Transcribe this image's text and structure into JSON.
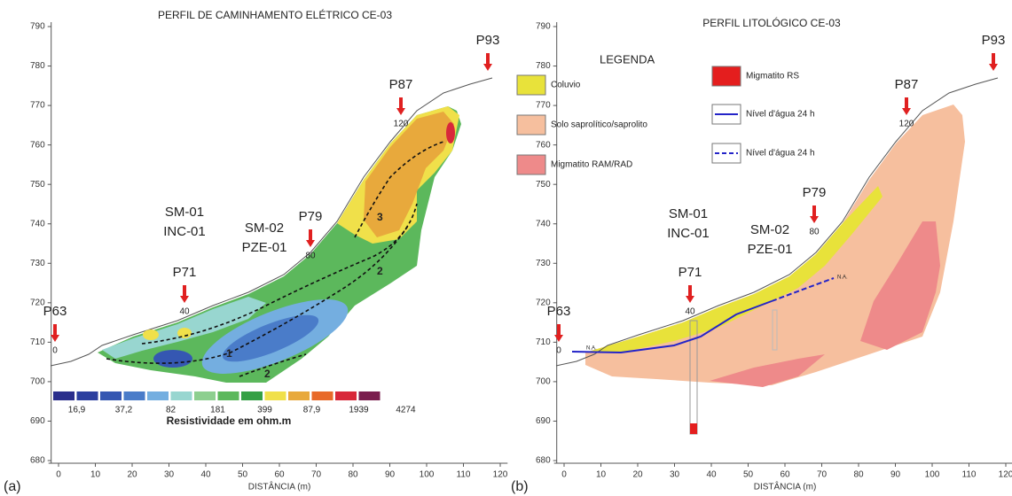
{
  "chart_data": [
    {
      "type": "profile",
      "title": "PERFIL DE CAMINHAMENTO ELÉTRICO CE-03",
      "panel_label": "(a)",
      "xlabel": "DISTÂNCIA (m)",
      "xlim": [
        -2,
        122
      ],
      "xticks": [
        0,
        10,
        20,
        30,
        40,
        50,
        60,
        70,
        80,
        90,
        100,
        110,
        120
      ],
      "ylim": [
        680,
        790
      ],
      "yticks": [
        680,
        690,
        700,
        710,
        720,
        730,
        740,
        750,
        760,
        770,
        780,
        790
      ],
      "wells": [
        {
          "name": "P63",
          "station": "0"
        },
        {
          "name": "P71",
          "station": "40"
        },
        {
          "name": "P79",
          "station": "80"
        },
        {
          "name": "P87",
          "station": "120"
        },
        {
          "name": "P93"
        }
      ],
      "boreholes": [
        [
          "SM-01",
          "INC-01"
        ],
        [
          "SM-02",
          "PZE-01"
        ]
      ],
      "contour_labels": [
        "1",
        "2",
        "2",
        "3"
      ],
      "colorscale": {
        "label": "Resistividade em ohm.m",
        "colors": [
          "#2b2f8c",
          "#2c3f9f",
          "#3557b2",
          "#4a7cc9",
          "#74aee0",
          "#98d6d0",
          "#8dcf8f",
          "#5cb85c",
          "#35a045",
          "#f0e04a",
          "#e8a93c",
          "#e86a2a",
          "#d8283a",
          "#7a1e4e"
        ],
        "tick_labels": [
          "16,9",
          "37,2",
          "82",
          "181",
          "399",
          "87,9",
          "1939",
          "4274"
        ]
      }
    },
    {
      "type": "profile",
      "title": "PERFIL LITOLÓGICO CE-03",
      "panel_label": "(b)",
      "xlabel": "DISTÂNCIA (m)",
      "xlim": [
        -2,
        122
      ],
      "xticks": [
        0,
        10,
        20,
        30,
        40,
        50,
        60,
        70,
        80,
        90,
        100,
        110,
        120
      ],
      "ylim": [
        680,
        790
      ],
      "yticks": [
        680,
        690,
        700,
        710,
        720,
        730,
        740,
        750,
        760,
        770,
        780,
        790
      ],
      "wells": [
        {
          "name": "P63",
          "station": "0"
        },
        {
          "name": "P71",
          "station": "40"
        },
        {
          "name": "P79",
          "station": "80"
        },
        {
          "name": "P87",
          "station": "120"
        },
        {
          "name": "P93"
        }
      ],
      "boreholes": [
        [
          "SM-01",
          "INC-01"
        ],
        [
          "SM-02",
          "PZE-01"
        ]
      ],
      "legend": {
        "title": "LEGENDA",
        "entries": [
          {
            "label": "Coluvio",
            "color": "#e8e23a"
          },
          {
            "label": "Solo saprolítico/saprolito",
            "color": "#f6bf9e"
          },
          {
            "label": "Migmatito RAM/RAD",
            "color": "#ee8a8a"
          },
          {
            "label": "Migmatito RS",
            "color": "#e41e1e"
          },
          {
            "label": "Nível d'água 24 h",
            "color": "#2424c8"
          },
          {
            "label": "Nível d'água 24 h",
            "color": "#2424c8"
          }
        ]
      },
      "water_labels": [
        "N.A.",
        "N.A."
      ]
    }
  ]
}
